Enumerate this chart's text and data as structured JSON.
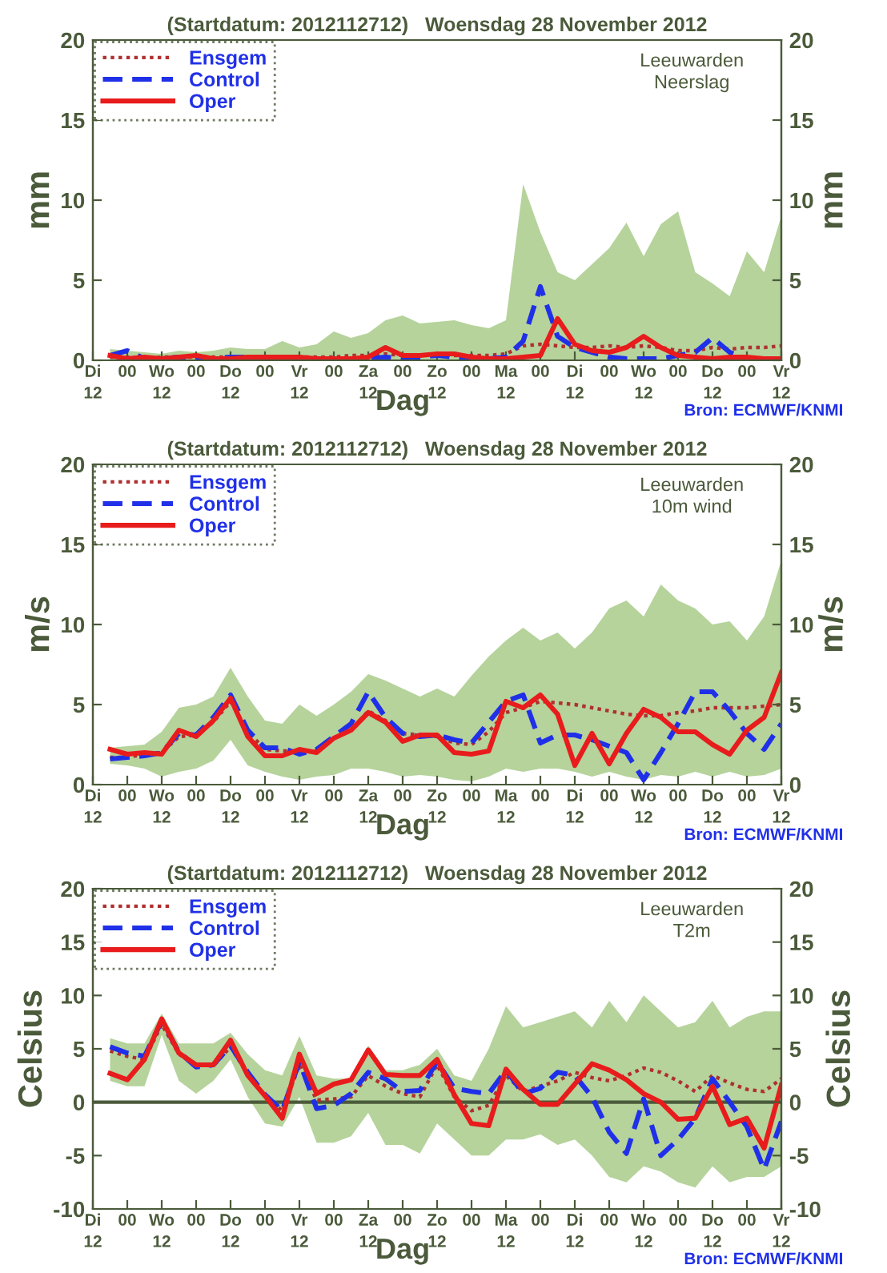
{
  "chart_data": [
    {
      "type": "line",
      "title": "(Startdatum: 2012112712)   Woensdag 28 November 2012",
      "xlabel": "Dag",
      "ylabel": "mm",
      "y2label": "mm",
      "annotations": [
        "Leeuwarden\nNeerslag",
        "Bron: ECMWF/KNMI"
      ],
      "categories": [
        "Di\n12",
        null,
        "00",
        null,
        "Wo\n12",
        null,
        "00",
        null,
        "Do\n12",
        null,
        "00",
        null,
        "Vr\n12",
        null,
        "00",
        null,
        "Za\n12",
        null,
        "00",
        null,
        "Zo\n12",
        null,
        "00",
        null,
        "Ma\n12",
        null,
        "00",
        null,
        "Di\n12",
        null,
        "00",
        null,
        "Wo\n12",
        null,
        "00",
        null,
        "Do\n12",
        null,
        "00",
        null,
        "Vr\n12"
      ],
      "ylim": [
        0,
        20
      ],
      "yticks": [
        0,
        5,
        10,
        15,
        20
      ],
      "y2lim": [
        0,
        20
      ],
      "y2ticks": [
        0,
        5,
        10,
        15,
        20
      ],
      "legend": "top left",
      "grid": false,
      "series": [
        {
          "name": "Ensgem",
          "color": "#b03030",
          "line_style": "dotted",
          "values": [
            null,
            0.2,
            0.2,
            0.1,
            0.2,
            0.2,
            0.2,
            0.2,
            0.2,
            0.2,
            0.2,
            0.2,
            0.2,
            0.2,
            0.2,
            0.3,
            0.3,
            0.4,
            0.3,
            0.3,
            0.4,
            0.3,
            0.3,
            0.3,
            0.4,
            0.9,
            1.0,
            0.9,
            0.8,
            0.8,
            0.9,
            0.8,
            0.9,
            0.8,
            0.6,
            0.6,
            0.8,
            0.7,
            0.8,
            0.8,
            0.9
          ],
          "lower": [
            null,
            0,
            0,
            0,
            0,
            0,
            0,
            0,
            0,
            0,
            0,
            0,
            0,
            0,
            0,
            0,
            0,
            0,
            0,
            0,
            0,
            0,
            0,
            0,
            0,
            0,
            0,
            0,
            0,
            0,
            0,
            0,
            0,
            0,
            0,
            0,
            0,
            0,
            0,
            0,
            0
          ],
          "upper": [
            null,
            0.7,
            0.6,
            0.5,
            0.4,
            0.6,
            0.5,
            0.6,
            0.8,
            0.7,
            0.7,
            1.2,
            0.8,
            1.0,
            1.8,
            1.4,
            1.7,
            2.5,
            2.8,
            2.3,
            2.4,
            2.5,
            2.2,
            2.0,
            2.5,
            11.0,
            8.0,
            5.5,
            5.0,
            6.0,
            7.0,
            8.6,
            6.5,
            8.5,
            9.3,
            5.5,
            4.8,
            4.0,
            6.8,
            5.5,
            9.0
          ]
        },
        {
          "name": "Control",
          "color": "#2030e8",
          "line_style": "dashed",
          "values": [
            null,
            0.3,
            0.6,
            0.1,
            0.1,
            0.2,
            0.1,
            0.1,
            0.2,
            0.2,
            0.1,
            0.1,
            0.1,
            0.1,
            0.1,
            0.1,
            0.1,
            0.2,
            0.1,
            0.2,
            0.3,
            0.2,
            0.1,
            0.1,
            0.2,
            1.2,
            4.6,
            1.5,
            0.8,
            0.5,
            0.2,
            0.1,
            0.1,
            0.1,
            0.3,
            0.5,
            1.4,
            0.5,
            0.1,
            0.1,
            0.1
          ]
        },
        {
          "name": "Oper",
          "color": "#e81c1c",
          "line_style": "solid",
          "values": [
            null,
            0.3,
            0.1,
            0.2,
            0.1,
            0.2,
            0.3,
            0.1,
            0.1,
            0.2,
            0.2,
            0.2,
            0.2,
            0.1,
            0.1,
            0.1,
            0.2,
            0.8,
            0.3,
            0.3,
            0.4,
            0.4,
            0.2,
            0.1,
            0.1,
            0.2,
            0.3,
            2.6,
            1.0,
            0.6,
            0.5,
            0.8,
            1.5,
            0.8,
            0.3,
            0.2,
            0.1,
            0.2,
            0.2,
            0.1,
            0.1
          ]
        }
      ]
    },
    {
      "type": "line",
      "title": "(Startdatum: 2012112712)   Woensdag 28 November 2012",
      "xlabel": "Dag",
      "ylabel": "m/s",
      "y2label": "m/s",
      "annotations": [
        "Leeuwarden\n10m wind",
        "Bron: ECMWF/KNMI"
      ],
      "categories": [
        "Di\n12",
        null,
        "00",
        null,
        "Wo\n12",
        null,
        "00",
        null,
        "Do\n12",
        null,
        "00",
        null,
        "Vr\n12",
        null,
        "00",
        null,
        "Za\n12",
        null,
        "00",
        null,
        "Zo\n12",
        null,
        "00",
        null,
        "Ma\n12",
        null,
        "00",
        null,
        "Di\n12",
        null,
        "00",
        null,
        "Wo\n12",
        null,
        "00",
        null,
        "Do\n12",
        null,
        "00",
        null,
        "Vr\n12"
      ],
      "ylim": [
        0,
        20
      ],
      "yticks": [
        0,
        5,
        10,
        15,
        20
      ],
      "y2lim": [
        0,
        20
      ],
      "y2ticks": [
        0,
        5,
        10,
        15,
        20
      ],
      "legend": "top left",
      "grid": false,
      "series": [
        {
          "name": "Ensgem",
          "color": "#b03030",
          "line_style": "dotted",
          "values": [
            null,
            1.7,
            1.7,
            1.9,
            2.0,
            3.0,
            3.1,
            3.9,
            5.2,
            3.3,
            2.2,
            2.1,
            2.1,
            2.1,
            2.9,
            3.4,
            4.6,
            4.0,
            3.2,
            3.1,
            3.0,
            2.6,
            2.5,
            3.3,
            4.5,
            4.8,
            5.2,
            5.1,
            5.0,
            4.8,
            4.6,
            4.4,
            4.3,
            4.3,
            4.5,
            4.6,
            4.8,
            4.8,
            4.8,
            4.9,
            5.0
          ],
          "lower": [
            null,
            1.3,
            1.2,
            1.0,
            0.5,
            0.8,
            1.0,
            1.5,
            2.8,
            1.2,
            0.8,
            0.5,
            0.3,
            0.5,
            0.6,
            1.0,
            1.0,
            0.8,
            0.5,
            0.6,
            0.5,
            0.3,
            0.2,
            0.5,
            1.0,
            0.8,
            1.0,
            1.0,
            0.8,
            0.5,
            0.8,
            0.5,
            0.3,
            0.6,
            0.5,
            0.8,
            0.5,
            0.8,
            0.5,
            0.6,
            1.0
          ],
          "upper": [
            null,
            2.3,
            2.4,
            2.5,
            3.3,
            4.8,
            5.0,
            5.5,
            7.3,
            5.5,
            4.0,
            3.8,
            5.0,
            4.3,
            5.0,
            5.8,
            6.9,
            6.5,
            6.0,
            5.5,
            6.0,
            5.5,
            6.8,
            8.0,
            9.0,
            9.8,
            9.0,
            9.5,
            8.5,
            9.5,
            11.0,
            11.5,
            10.5,
            12.5,
            11.5,
            11.0,
            10.0,
            10.2,
            9.0,
            10.5,
            14.0
          ]
        },
        {
          "name": "Control",
          "color": "#2030e8",
          "line_style": "dashed",
          "values": [
            null,
            1.6,
            1.7,
            1.8,
            2.0,
            3.2,
            3.1,
            4.2,
            5.6,
            3.4,
            2.3,
            2.3,
            1.9,
            2.2,
            3.0,
            3.8,
            5.8,
            4.2,
            3.2,
            3.0,
            3.1,
            2.8,
            2.6,
            3.9,
            5.2,
            5.6,
            2.6,
            3.1,
            3.1,
            2.8,
            2.4,
            2.0,
            0.3,
            2.0,
            3.8,
            5.8,
            5.8,
            4.6,
            3.2,
            2.2,
            3.8
          ]
        },
        {
          "name": "Oper",
          "color": "#e81c1c",
          "line_style": "solid",
          "values": [
            null,
            2.2,
            1.9,
            2.0,
            1.9,
            3.4,
            3.0,
            4.0,
            5.4,
            3.0,
            1.8,
            1.8,
            2.2,
            2.0,
            2.9,
            3.4,
            4.5,
            3.9,
            2.7,
            3.1,
            3.1,
            2.0,
            1.9,
            2.1,
            5.2,
            4.8,
            5.6,
            4.4,
            1.2,
            3.2,
            1.3,
            3.2,
            4.7,
            4.2,
            3.3,
            3.3,
            2.5,
            1.9,
            3.4,
            4.2,
            7.0
          ]
        }
      ]
    },
    {
      "type": "line",
      "title": "(Startdatum: 2012112712)   Woensdag 28 November 2012",
      "xlabel": "Dag",
      "ylabel": "Celsius",
      "y2label": "Celsius",
      "annotations": [
        "Leeuwarden\nT2m",
        "Bron: ECMWF/KNMI"
      ],
      "categories": [
        "Di\n12",
        null,
        "00",
        null,
        "Wo\n12",
        null,
        "00",
        null,
        "Do\n12",
        null,
        "00",
        null,
        "Vr\n12",
        null,
        "00",
        null,
        "Za\n12",
        null,
        "00",
        null,
        "Zo\n12",
        null,
        "00",
        null,
        "Ma\n12",
        null,
        "00",
        null,
        "Di\n12",
        null,
        "00",
        null,
        "Wo\n12",
        null,
        "00",
        null,
        "Do\n12",
        null,
        "00",
        null,
        "Vr\n12"
      ],
      "ylim": [
        -10,
        20
      ],
      "yticks": [
        -10,
        -5,
        0,
        5,
        10,
        15,
        20
      ],
      "y2lim": [
        -10,
        20
      ],
      "y2ticks": [
        -10,
        -5,
        0,
        5,
        10,
        15,
        20
      ],
      "legend": "top left",
      "grid": false,
      "ref_lines": [
        {
          "axis": "y",
          "value": 0,
          "color": "#4a5a3a"
        }
      ],
      "series": [
        {
          "name": "Ensgem",
          "color": "#b03030",
          "line_style": "dotted",
          "values": [
            null,
            4.8,
            4.3,
            4.0,
            7.3,
            4.5,
            3.5,
            3.4,
            5.2,
            2.6,
            0.6,
            -0.8,
            3.5,
            0.2,
            0.3,
            0.5,
            2.5,
            1.5,
            0.8,
            0.5,
            3.5,
            0.5,
            -0.8,
            -0.3,
            2.5,
            1.0,
            1.5,
            2.0,
            2.8,
            2.3,
            2.0,
            2.5,
            3.2,
            2.8,
            2.0,
            1.0,
            2.5,
            1.8,
            1.2,
            1.0,
            2.2
          ],
          "lower": [
            null,
            2.0,
            1.5,
            1.5,
            6.3,
            2.0,
            0.8,
            2.0,
            4.0,
            0.5,
            -2.0,
            -2.3,
            0.5,
            -3.8,
            -3.8,
            -3.2,
            -1.0,
            -4.0,
            -4.0,
            -4.8,
            -2.0,
            -3.5,
            -5.0,
            -5.0,
            -3.5,
            -3.5,
            -3.0,
            -4.0,
            -3.5,
            -5.0,
            -7.0,
            -7.5,
            -6.0,
            -6.5,
            -7.5,
            -8.0,
            -6.0,
            -7.5,
            -7.0,
            -7.0,
            -6.0
          ],
          "upper": [
            null,
            6.0,
            5.5,
            5.5,
            8.3,
            5.5,
            5.5,
            5.5,
            6.5,
            4.5,
            3.0,
            2.5,
            6.2,
            2.5,
            2.2,
            2.2,
            5.3,
            3.0,
            3.0,
            3.5,
            5.0,
            2.5,
            2.0,
            5.0,
            9.0,
            7.0,
            7.5,
            8.0,
            8.5,
            7.0,
            9.5,
            7.5,
            10.0,
            8.5,
            7.0,
            7.5,
            9.5,
            7.0,
            8.0,
            8.5,
            8.5
          ]
        },
        {
          "name": "Control",
          "color": "#2030e8",
          "line_style": "dashed",
          "values": [
            null,
            5.2,
            4.6,
            4.3,
            7.6,
            4.7,
            3.3,
            3.5,
            5.3,
            2.8,
            0.7,
            -0.8,
            3.8,
            -0.6,
            -0.3,
            0.8,
            2.8,
            2.2,
            1.0,
            1.1,
            3.8,
            1.3,
            1.0,
            0.8,
            3.0,
            0.8,
            1.3,
            2.8,
            2.5,
            0.5,
            -2.8,
            -4.8,
            0.3,
            -5.0,
            -3.5,
            -1.5,
            2.2,
            0.0,
            -2.3,
            -6.3,
            -1.8
          ]
        },
        {
          "name": "Oper",
          "color": "#e81c1c",
          "line_style": "solid",
          "values": [
            null,
            2.7,
            2.1,
            4.0,
            7.8,
            4.6,
            3.5,
            3.5,
            5.8,
            2.5,
            0.6,
            -1.5,
            4.5,
            0.8,
            1.7,
            2.1,
            4.9,
            2.6,
            2.5,
            2.5,
            4.0,
            0.7,
            -2.0,
            -2.2,
            3.1,
            1.2,
            -0.2,
            -0.2,
            1.7,
            3.6,
            3.0,
            2.1,
            0.8,
            0.0,
            -1.6,
            -1.5,
            1.5,
            -2.1,
            -1.5,
            -4.3,
            1.6
          ]
        }
      ]
    }
  ]
}
